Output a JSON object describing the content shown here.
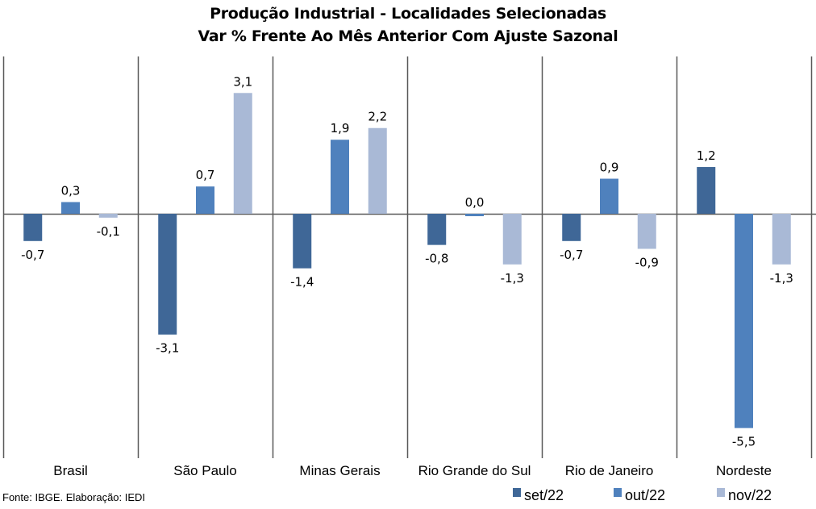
{
  "chart_data": {
    "type": "bar",
    "title": "Produção Industrial - Localidades Selecionadas",
    "subtitle": "Var % Frente Ao Mês Anterior Com Ajuste Sazonal",
    "xlabel": "",
    "ylabel": "",
    "categories": [
      "Brasil",
      "São Paulo",
      "Minas Gerais",
      "Rio Grande do Sul",
      "Rio de Janeiro",
      "Nordeste"
    ],
    "series": [
      {
        "name": "set/22",
        "color": "#3F6797",
        "values": [
          -0.7,
          -3.1,
          -1.4,
          -0.8,
          -0.7,
          1.2
        ],
        "labels": [
          "-0,7",
          "-3,1",
          "-1,4",
          "-0,8",
          "-0,7",
          "1,2"
        ]
      },
      {
        "name": "out/22",
        "color": "#4F81BD",
        "values": [
          0.3,
          0.7,
          1.9,
          0.0,
          0.9,
          -5.5
        ],
        "labels": [
          "0,3",
          "0,7",
          "1,9",
          "0,0",
          "0,9",
          "-5,5"
        ]
      },
      {
        "name": "nov/22",
        "color": "#A9B9D6",
        "values": [
          -0.1,
          3.1,
          2.2,
          -1.3,
          -0.9,
          -1.3
        ],
        "labels": [
          "-0,1",
          "3,1",
          "2,2",
          "-1,3",
          "-0,9",
          "-1,3"
        ]
      }
    ],
    "ylim": [
      -6.2,
      4.1
    ],
    "grid": false,
    "legend": "bottom-right",
    "source": "Fonte: IBGE. Elaboração: IEDI"
  }
}
